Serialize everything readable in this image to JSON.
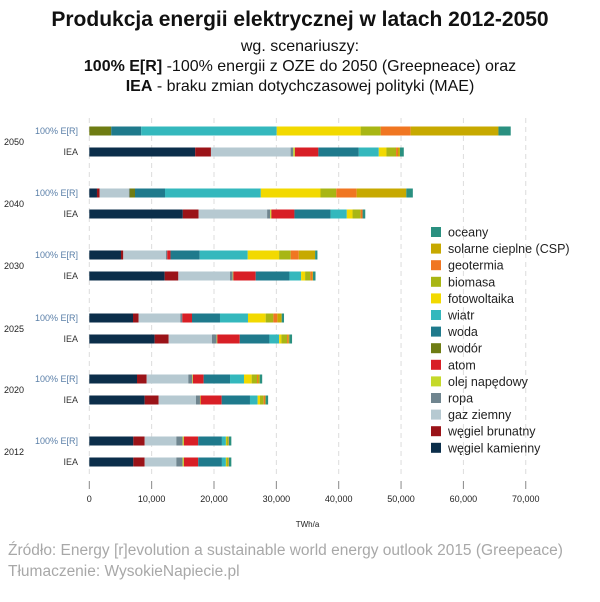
{
  "header": {
    "title": "Produkcja energii elektrycznej w latach 2012-2050",
    "line1": "wg. scenariuszy:",
    "line2_bold": "100% E[R]",
    "line2_rest": " -100% energii z OZE do 2050 (Greepneace) oraz",
    "line3_bold": "IEA",
    "line3_rest": " - braku zmian dotychczasowej polityki  (MAE)"
  },
  "footer": {
    "source": "Źródło: Energy [r]evolution a sustainable world energy outlook 2015 (Greepeace)",
    "translation": "Tłumaczenie: WysokieNapiecie.pl"
  },
  "chart_data": {
    "type": "bar",
    "orientation": "horizontal",
    "stacked": true,
    "xlabel": "TWh/a",
    "xlim": [
      0,
      70000
    ],
    "x_ticks": [
      "0",
      "10,000",
      "20,000",
      "30,000",
      "40,000",
      "50,000",
      "60,000",
      "70,000"
    ],
    "grid": "vertical dashed",
    "legend_position": "right",
    "groups": [
      "2050",
      "2040",
      "2030",
      "2025",
      "2020",
      "2012"
    ],
    "scenarios": [
      "100% E[R]",
      "IEA"
    ],
    "series": [
      {
        "name": "węgiel kamienny",
        "color": "#0b2e4a",
        "values": [
          [
            0,
            16980
          ],
          [
            1230,
            15000
          ],
          [
            5080,
            12090
          ],
          [
            7010,
            10480
          ],
          [
            7650,
            8880
          ],
          [
            7060,
            7060
          ]
        ]
      },
      {
        "name": "węgiel brunatny",
        "color": "#9a1318",
        "values": [
          [
            0,
            2530
          ],
          [
            430,
            2530
          ],
          [
            370,
            2190
          ],
          [
            900,
            2250
          ],
          [
            1550,
            2240
          ],
          [
            1820,
            1820
          ]
        ]
      },
      {
        "name": "gaz ziemny",
        "color": "#b6c9d1",
        "values": [
          [
            0,
            12780
          ],
          [
            4690,
            10990
          ],
          [
            6850,
            8290
          ],
          [
            6690,
            6950
          ],
          [
            6680,
            5990
          ],
          [
            5080,
            5080
          ]
        ]
      },
      {
        "name": "ropa",
        "color": "#6f858f",
        "values": [
          [
            0,
            430
          ],
          [
            120,
            490
          ],
          [
            200,
            430
          ],
          [
            320,
            750
          ],
          [
            640,
            640
          ],
          [
            1010,
            1010
          ]
        ]
      },
      {
        "name": "olej napędowy",
        "color": "#c5d92a",
        "values": [
          [
            0,
            250
          ],
          [
            0,
            190
          ],
          [
            0,
            100
          ],
          [
            0,
            100
          ],
          [
            100,
            100
          ],
          [
            200,
            200
          ]
        ]
      },
      {
        "name": "atom",
        "color": "#d81f26",
        "values": [
          [
            0,
            3770
          ],
          [
            0,
            3700
          ],
          [
            530,
            3590
          ],
          [
            1550,
            3600
          ],
          [
            1720,
            3380
          ],
          [
            2300,
            2300
          ]
        ]
      },
      {
        "name": "wodór",
        "color": "#6e7c13",
        "values": [
          [
            3520,
            0
          ],
          [
            860,
            0
          ],
          [
            0,
            0
          ],
          [
            0,
            0
          ],
          [
            0,
            0
          ],
          [
            0,
            0
          ]
        ]
      },
      {
        "name": "woda",
        "color": "#1f7a8c",
        "values": [
          [
            4810,
            6480
          ],
          [
            4810,
            5800
          ],
          [
            4680,
            5410
          ],
          [
            4490,
            4760
          ],
          [
            4230,
            4540
          ],
          [
            3800,
            3800
          ]
        ]
      },
      {
        "name": "wiatr",
        "color": "#34b8bd",
        "values": [
          [
            21730,
            3210
          ],
          [
            15370,
            2600
          ],
          [
            7700,
            1870
          ],
          [
            4490,
            1550
          ],
          [
            2240,
            1230
          ],
          [
            640,
            640
          ]
        ]
      },
      {
        "name": "fotowoltaika",
        "color": "#f2d900",
        "values": [
          [
            13460,
            1230
          ],
          [
            9570,
            920
          ],
          [
            5030,
            640
          ],
          [
            2840,
            370
          ],
          [
            1230,
            380
          ],
          [
            100,
            100
          ]
        ]
      },
      {
        "name": "biomasa",
        "color": "#a8b614",
        "values": [
          [
            3210,
            1540
          ],
          [
            2530,
            1300
          ],
          [
            1870,
            850
          ],
          [
            1230,
            910
          ],
          [
            860,
            590
          ],
          [
            300,
            300
          ]
        ]
      },
      {
        "name": "geotermia",
        "color": "#f07622",
        "values": [
          [
            4810,
            310
          ],
          [
            3270,
            310
          ],
          [
            1290,
            320
          ],
          [
            640,
            210
          ],
          [
            160,
            210
          ],
          [
            70,
            70
          ]
        ]
      },
      {
        "name": "solarne cieplne (CSP)",
        "color": "#c7a900",
        "values": [
          [
            14080,
            310
          ],
          [
            7960,
            0
          ],
          [
            2620,
            100
          ],
          [
            700,
            160
          ],
          [
            270,
            100
          ],
          [
            0,
            0
          ]
        ]
      },
      {
        "name": "oceany",
        "color": "#2a9080",
        "values": [
          [
            1970,
            620
          ],
          [
            1050,
            430
          ],
          [
            370,
            400
          ],
          [
            370,
            430
          ],
          [
            400,
            400
          ],
          [
            400,
            400
          ]
        ]
      }
    ]
  }
}
